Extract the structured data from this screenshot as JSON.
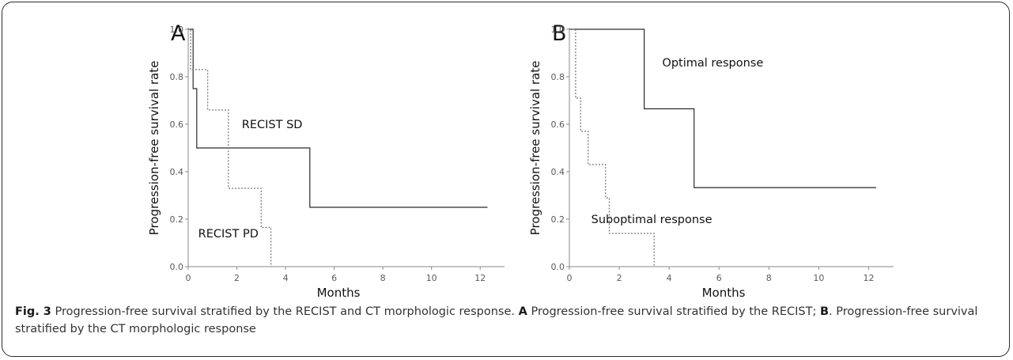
{
  "figure": {
    "caption_label": "Fig. 3",
    "caption_title": " Progression-free survival stratified by the RECIST and CT morphologic response. ",
    "caption_a_marker": "A",
    "caption_a_text": " Progression-free survival stratified by the RECIST; ",
    "caption_b_marker": "B",
    "caption_b_text": ". Progression-free survival stratified by the CT morphologic response"
  },
  "colors": {
    "solid": "#2a2a2a",
    "dotted": "#7a7a7a",
    "axis": "#8a8a8a"
  },
  "chart_data": [
    {
      "type": "line",
      "panel_letter": "A",
      "xlabel": "Months",
      "ylabel": "Progression-free survival rate",
      "xlim": [
        0,
        13
      ],
      "ylim": [
        0,
        1
      ],
      "xticks": [
        "0",
        "2",
        "4",
        "6",
        "8",
        "10",
        "12"
      ],
      "yticks": [
        "0.0",
        "0.2",
        "0.4",
        "0.6",
        "0.8",
        "1.0"
      ],
      "series": [
        {
          "name": "RECIST SD",
          "style": "solid",
          "x": [
            0,
            0.2,
            0.2,
            0.35,
            0.35,
            5.0,
            5.0,
            12.3
          ],
          "y": [
            1.0,
            1.0,
            0.75,
            0.75,
            0.5,
            0.5,
            0.25,
            0.25
          ]
        },
        {
          "name": "RECIST PD",
          "style": "dotted",
          "x": [
            0,
            0.1,
            0.1,
            0.8,
            0.8,
            1.65,
            1.65,
            3.0,
            3.0,
            3.4,
            3.4
          ],
          "y": [
            1.0,
            1.0,
            0.83,
            0.83,
            0.66,
            0.66,
            0.33,
            0.33,
            0.165,
            0.165,
            0.0
          ]
        }
      ],
      "annotations": [
        {
          "text": "RECIST SD",
          "x": 3.45,
          "y": 0.6
        },
        {
          "text": "RECIST PD",
          "x": 1.65,
          "y": 0.14
        }
      ]
    },
    {
      "type": "line",
      "panel_letter": "B",
      "xlabel": "Months",
      "ylabel": "Progression-free survival rate",
      "xlim": [
        0,
        13
      ],
      "ylim": [
        0,
        1
      ],
      "xticks": [
        "0",
        "2",
        "4",
        "6",
        "8",
        "10",
        "12"
      ],
      "yticks": [
        "0.0",
        "0.2",
        "0.4",
        "0.6",
        "0.8",
        "1.0"
      ],
      "series": [
        {
          "name": "Optimal response",
          "style": "solid",
          "x": [
            0,
            3.0,
            3.0,
            5.0,
            5.0,
            12.3
          ],
          "y": [
            1.0,
            1.0,
            0.665,
            0.665,
            0.333,
            0.333
          ]
        },
        {
          "name": "Suboptimal response",
          "style": "dotted",
          "x": [
            0,
            0.25,
            0.25,
            0.45,
            0.45,
            0.75,
            0.75,
            1.45,
            1.45,
            1.6,
            1.6,
            3.4,
            3.4
          ],
          "y": [
            1.0,
            1.0,
            0.71,
            0.71,
            0.57,
            0.57,
            0.43,
            0.43,
            0.29,
            0.29,
            0.14,
            0.14,
            0.0
          ]
        }
      ],
      "annotations": [
        {
          "text": "Optimal response",
          "x": 5.75,
          "y": 0.86
        },
        {
          "text": "Suboptimal response",
          "x": 3.3,
          "y": 0.2
        }
      ]
    }
  ]
}
